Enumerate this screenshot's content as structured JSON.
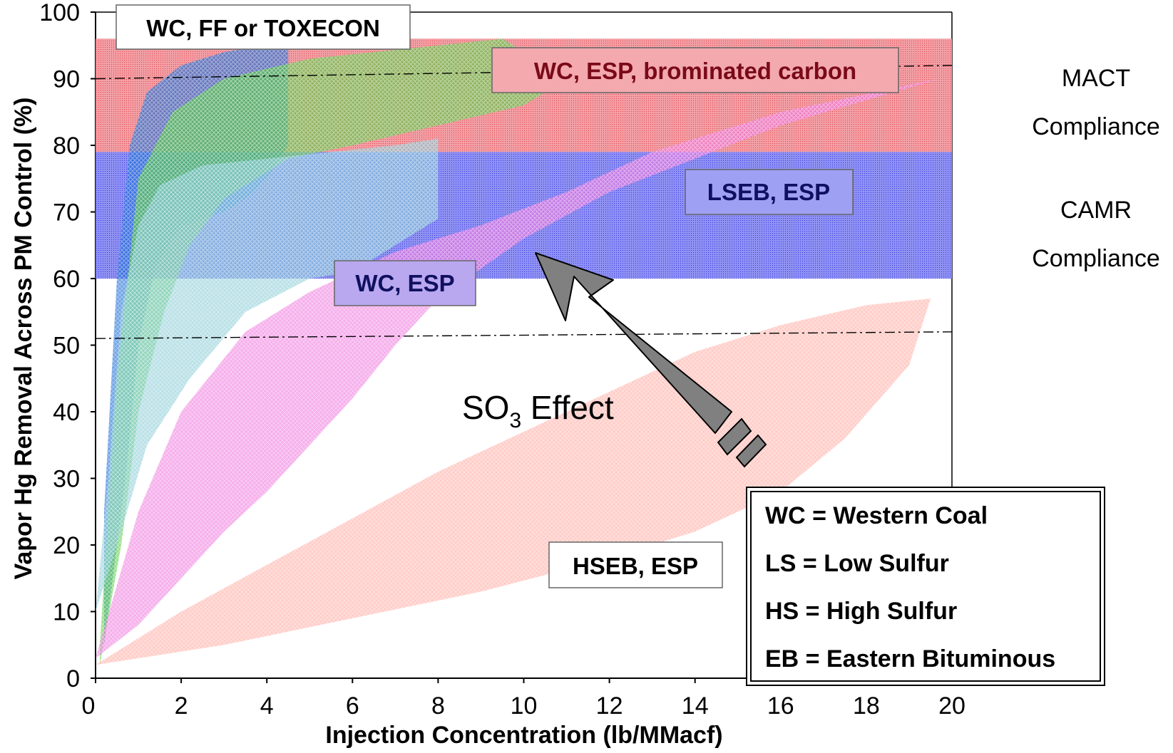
{
  "chart_data": {
    "type": "area",
    "title": "",
    "xlabel": "Injection Concentration (lb/MMacf)",
    "ylabel": "Vapor Hg Removal Across PM Control (%)",
    "xlim": [
      0,
      20
    ],
    "ylim": [
      0,
      100
    ],
    "x_ticks": [
      "0",
      "2",
      "4",
      "6",
      "8",
      "10",
      "12",
      "14",
      "16",
      "18",
      "20"
    ],
    "y_ticks": [
      "0",
      "10",
      "20",
      "30",
      "40",
      "50",
      "60",
      "70",
      "80",
      "90",
      "100"
    ],
    "grid": false,
    "compliance_bands": [
      {
        "name": "MACT",
        "label_line1": "MACT",
        "label_line2": "Compliance",
        "y_range": [
          79,
          96
        ],
        "color": "#e8383e"
      },
      {
        "name": "CAMR",
        "label_line1": "CAMR",
        "label_line2": "Compliance",
        "y_range": [
          60,
          79
        ],
        "color": "#2b2bff"
      }
    ],
    "reference_lines": [
      {
        "style": "dash-dot",
        "x": [
          0,
          20
        ],
        "y": [
          51,
          52
        ]
      },
      {
        "style": "dash-dot",
        "x": [
          0,
          20
        ],
        "y": [
          90,
          92
        ]
      }
    ],
    "series": [
      {
        "name": "WC, FF or TOXECON",
        "color": "#1f6fd6",
        "upper": [
          [
            0.2,
            25
          ],
          [
            0.5,
            60
          ],
          [
            0.8,
            80
          ],
          [
            1.2,
            88
          ],
          [
            2,
            92
          ],
          [
            3,
            94
          ],
          [
            4,
            95
          ],
          [
            4.5,
            96
          ]
        ],
        "lower": [
          [
            0.2,
            5
          ],
          [
            0.7,
            30
          ],
          [
            1.0,
            50
          ],
          [
            1.4,
            62
          ],
          [
            2,
            68
          ],
          [
            3,
            70
          ],
          [
            3.5,
            72
          ],
          [
            4,
            75
          ],
          [
            4.5,
            80
          ],
          [
            4.5,
            96
          ]
        ]
      },
      {
        "name": "WC, ESP, brominated carbon",
        "color": "#5fce4a",
        "upper": [
          [
            0.1,
            5
          ],
          [
            0.5,
            45
          ],
          [
            1.0,
            75
          ],
          [
            1.8,
            85
          ],
          [
            3,
            90
          ],
          [
            5,
            93
          ],
          [
            8,
            95
          ],
          [
            9.5,
            96
          ]
        ],
        "lower": [
          [
            0.1,
            2
          ],
          [
            0.6,
            20
          ],
          [
            1.0,
            40
          ],
          [
            1.6,
            55
          ],
          [
            2.2,
            65
          ],
          [
            3,
            72
          ],
          [
            4.5,
            78
          ],
          [
            6,
            80
          ],
          [
            8,
            83
          ],
          [
            10,
            86
          ],
          [
            11,
            90
          ]
        ]
      },
      {
        "name": "WC, ESP",
        "color": "#8fcfd8",
        "upper": [
          [
            0,
            10
          ],
          [
            0.3,
            30
          ],
          [
            0.6,
            55
          ],
          [
            1.0,
            68
          ],
          [
            1.5,
            74
          ],
          [
            2.5,
            77
          ],
          [
            4,
            78
          ],
          [
            7,
            80
          ],
          [
            8,
            81
          ]
        ],
        "lower": [
          [
            0,
            10
          ],
          [
            0.5,
            20
          ],
          [
            1.2,
            35
          ],
          [
            2.2,
            45
          ],
          [
            3.5,
            55
          ],
          [
            5,
            60
          ],
          [
            6,
            61
          ],
          [
            7,
            65
          ],
          [
            8,
            69
          ]
        ]
      },
      {
        "name": "LSEB, ESP",
        "color": "#f080e0",
        "upper": [
          [
            0,
            3
          ],
          [
            1,
            25
          ],
          [
            2,
            40
          ],
          [
            3.5,
            52
          ],
          [
            5,
            58
          ],
          [
            7,
            64
          ],
          [
            9,
            68
          ],
          [
            11,
            73
          ],
          [
            13,
            79
          ],
          [
            16,
            85
          ],
          [
            19.7,
            90
          ]
        ],
        "lower": [
          [
            0,
            3
          ],
          [
            1,
            8
          ],
          [
            2,
            15
          ],
          [
            3,
            22
          ],
          [
            4,
            28
          ],
          [
            5,
            35
          ],
          [
            6,
            42
          ],
          [
            7,
            50
          ],
          [
            8,
            57
          ],
          [
            10,
            66
          ],
          [
            12,
            73
          ],
          [
            14,
            78
          ],
          [
            16,
            83
          ],
          [
            19.7,
            90
          ]
        ]
      },
      {
        "name": "HSEB, ESP",
        "color": "#ffb0a8",
        "upper": [
          [
            0,
            2
          ],
          [
            2,
            10
          ],
          [
            4,
            17
          ],
          [
            6,
            24
          ],
          [
            8,
            31
          ],
          [
            10,
            37
          ],
          [
            12,
            43
          ],
          [
            14,
            49
          ],
          [
            16,
            53
          ],
          [
            18,
            56
          ],
          [
            19.5,
            57
          ]
        ],
        "lower": [
          [
            0,
            2
          ],
          [
            3,
            5
          ],
          [
            6,
            9
          ],
          [
            9,
            13
          ],
          [
            12,
            18
          ],
          [
            14,
            22
          ],
          [
            16,
            28
          ],
          [
            17.5,
            36
          ],
          [
            19,
            47
          ],
          [
            19.5,
            57
          ]
        ]
      }
    ],
    "annotations": [
      {
        "text": "WC, FF or TOXECON",
        "color": "#000000"
      },
      {
        "text": "WC, ESP, brominated carbon",
        "color": "#7a0a18"
      },
      {
        "text": "LSEB, ESP",
        "color": "#101060"
      },
      {
        "text": "WC, ESP",
        "color": "#101060"
      },
      {
        "text": "HSEB, ESP",
        "color": "#000000"
      },
      {
        "text_main": "SO",
        "text_sub": "3",
        "text_tail": " Effect",
        "arrow": "toward upper-left"
      }
    ],
    "legend": {
      "placement": "bottom-right",
      "entries": [
        "WC = Western Coal",
        "LS = Low Sulfur",
        "HS = High Sulfur",
        "EB = Eastern Bituminous"
      ]
    }
  }
}
